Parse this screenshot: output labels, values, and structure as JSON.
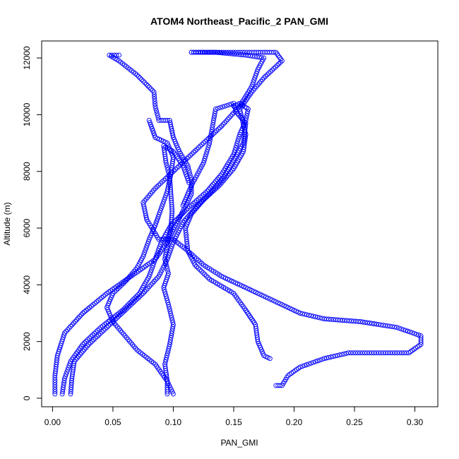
{
  "chart_data": {
    "type": "scatter",
    "title": "ATOM4 Northeast_Pacific_2 PAN_GMI",
    "xlabel": "PAN_GMI",
    "ylabel": "Altitude (m)",
    "xlim": [
      -0.009,
      0.319
    ],
    "ylim": [
      -300,
      12600
    ],
    "xticks": [
      0.0,
      0.05,
      0.1,
      0.15,
      0.2,
      0.25,
      0.3
    ],
    "xtick_labels": [
      "0.00",
      "0.05",
      "0.10",
      "0.15",
      "0.20",
      "0.25",
      "0.30"
    ],
    "yticks": [
      0,
      2000,
      4000,
      6000,
      8000,
      10000,
      12000
    ],
    "ytick_labels": [
      "0",
      "2000",
      "4000",
      "6000",
      "8000",
      "10000",
      "12000"
    ],
    "grid": false,
    "marker": "open-circle",
    "color": "#0000ff",
    "series": [
      {
        "profile_points": [
          [
            0.095,
            150
          ],
          [
            0.095,
            600
          ],
          [
            0.093,
            1200
          ],
          [
            0.097,
            1900
          ],
          [
            0.1,
            2600
          ],
          [
            0.096,
            3300
          ],
          [
            0.092,
            3900
          ],
          [
            0.096,
            4400
          ],
          [
            0.093,
            4900
          ],
          [
            0.095,
            5400
          ],
          [
            0.098,
            6000
          ],
          [
            0.099,
            6600
          ],
          [
            0.098,
            7200
          ],
          [
            0.097,
            7800
          ],
          [
            0.094,
            8300
          ],
          [
            0.092,
            8900
          ],
          [
            0.1,
            8700
          ],
          [
            0.108,
            8200
          ],
          [
            0.113,
            7600
          ]
        ]
      },
      {
        "profile_points": [
          [
            0.002,
            150
          ],
          [
            0.002,
            800
          ],
          [
            0.004,
            1500
          ],
          [
            0.01,
            2300
          ],
          [
            0.025,
            3000
          ],
          [
            0.045,
            3700
          ],
          [
            0.065,
            4300
          ],
          [
            0.085,
            4900
          ],
          [
            0.095,
            5500
          ],
          [
            0.102,
            6100
          ],
          [
            0.108,
            6600
          ],
          [
            0.115,
            7200
          ],
          [
            0.115,
            7700
          ],
          [
            0.112,
            8200
          ],
          [
            0.105,
            8700
          ],
          [
            0.1,
            9200
          ],
          [
            0.097,
            9800
          ],
          [
            0.088,
            9800
          ],
          [
            0.085,
            10300
          ],
          [
            0.084,
            10800
          ],
          [
            0.07,
            11400
          ],
          [
            0.055,
            11900
          ],
          [
            0.047,
            12100
          ],
          [
            0.055,
            12100
          ]
        ]
      },
      {
        "profile_points": [
          [
            0.015,
            150
          ],
          [
            0.016,
            700
          ],
          [
            0.018,
            1300
          ],
          [
            0.03,
            1900
          ],
          [
            0.045,
            2500
          ],
          [
            0.06,
            3100
          ],
          [
            0.075,
            3700
          ],
          [
            0.088,
            4300
          ],
          [
            0.095,
            4900
          ],
          [
            0.1,
            5500
          ],
          [
            0.108,
            6200
          ],
          [
            0.118,
            6700
          ],
          [
            0.13,
            7200
          ],
          [
            0.142,
            7800
          ],
          [
            0.15,
            8400
          ],
          [
            0.158,
            9000
          ],
          [
            0.16,
            9700
          ],
          [
            0.152,
            10100
          ],
          [
            0.15,
            10400
          ],
          [
            0.135,
            10200
          ],
          [
            0.13,
            9000
          ],
          [
            0.125,
            8300
          ],
          [
            0.115,
            7500
          ],
          [
            0.108,
            6800
          ]
        ]
      },
      {
        "profile_points": [
          [
            0.008,
            150
          ],
          [
            0.01,
            700
          ],
          [
            0.015,
            1300
          ],
          [
            0.025,
            1900
          ],
          [
            0.04,
            2500
          ],
          [
            0.058,
            3100
          ],
          [
            0.072,
            3700
          ],
          [
            0.08,
            4300
          ],
          [
            0.085,
            4900
          ],
          [
            0.09,
            5500
          ],
          [
            0.098,
            6100
          ],
          [
            0.112,
            6700
          ],
          [
            0.128,
            7300
          ],
          [
            0.14,
            7900
          ],
          [
            0.15,
            8600
          ],
          [
            0.155,
            9300
          ],
          [
            0.16,
            9800
          ],
          [
            0.162,
            10200
          ],
          [
            0.155,
            10400
          ],
          [
            0.15,
            10300
          ]
        ]
      },
      {
        "profile_points": [
          [
            0.185,
            450
          ],
          [
            0.19,
            450
          ],
          [
            0.195,
            800
          ],
          [
            0.205,
            1100
          ],
          [
            0.225,
            1400
          ],
          [
            0.245,
            1600
          ],
          [
            0.27,
            1600
          ],
          [
            0.295,
            1600
          ],
          [
            0.305,
            1900
          ],
          [
            0.305,
            2200
          ],
          [
            0.285,
            2500
          ],
          [
            0.255,
            2700
          ],
          [
            0.225,
            2800
          ],
          [
            0.205,
            3000
          ],
          [
            0.19,
            3300
          ],
          [
            0.175,
            3600
          ],
          [
            0.16,
            3900
          ],
          [
            0.14,
            4300
          ],
          [
            0.125,
            4700
          ],
          [
            0.112,
            5200
          ],
          [
            0.1,
            5600
          ],
          [
            0.088,
            5600
          ],
          [
            0.078,
            6300
          ],
          [
            0.075,
            6900
          ],
          [
            0.085,
            7400
          ],
          [
            0.095,
            7800
          ],
          [
            0.11,
            8400
          ],
          [
            0.125,
            9000
          ],
          [
            0.14,
            9600
          ],
          [
            0.155,
            10300
          ],
          [
            0.165,
            11000
          ],
          [
            0.17,
            11600
          ],
          [
            0.175,
            12000
          ],
          [
            0.16,
            12100
          ],
          [
            0.135,
            12200
          ],
          [
            0.115,
            12200
          ]
        ]
      },
      {
        "profile_points": [
          [
            0.115,
            12200
          ],
          [
            0.14,
            12200
          ],
          [
            0.165,
            12200
          ],
          [
            0.185,
            12200
          ],
          [
            0.19,
            11900
          ],
          [
            0.175,
            11300
          ],
          [
            0.165,
            10800
          ],
          [
            0.155,
            10200
          ],
          [
            0.16,
            9300
          ],
          [
            0.158,
            8700
          ],
          [
            0.15,
            8100
          ],
          [
            0.138,
            7500
          ],
          [
            0.125,
            7000
          ],
          [
            0.115,
            6500
          ],
          [
            0.11,
            6000
          ],
          [
            0.112,
            5200
          ],
          [
            0.118,
            4700
          ],
          [
            0.13,
            4200
          ],
          [
            0.15,
            3700
          ],
          [
            0.16,
            3100
          ],
          [
            0.168,
            2600
          ],
          [
            0.17,
            2000
          ],
          [
            0.175,
            1500
          ],
          [
            0.18,
            1400
          ]
        ]
      },
      {
        "profile_points": [
          [
            0.1,
            150
          ],
          [
            0.095,
            600
          ],
          [
            0.085,
            1200
          ],
          [
            0.07,
            1700
          ],
          [
            0.06,
            2200
          ],
          [
            0.05,
            2700
          ],
          [
            0.045,
            3200
          ],
          [
            0.05,
            3700
          ],
          [
            0.06,
            4100
          ],
          [
            0.07,
            4600
          ],
          [
            0.075,
            5000
          ],
          [
            0.08,
            5600
          ],
          [
            0.085,
            6100
          ],
          [
            0.09,
            6700
          ],
          [
            0.095,
            7300
          ],
          [
            0.098,
            7900
          ],
          [
            0.1,
            8500
          ],
          [
            0.095,
            9000
          ],
          [
            0.085,
            9200
          ],
          [
            0.08,
            9800
          ]
        ]
      }
    ]
  }
}
